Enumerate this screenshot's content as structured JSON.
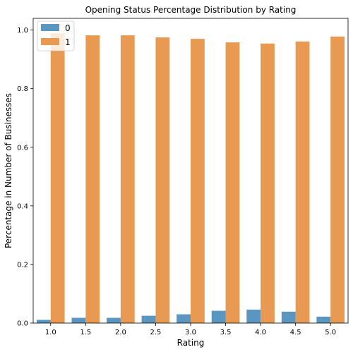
{
  "chart_data": {
    "type": "bar",
    "title": "Opening Status Percentage Distribution by Rating",
    "xlabel": "Rating",
    "ylabel": "Percentage in Number of Businesses",
    "categories": [
      "1.0",
      "1.5",
      "2.0",
      "2.5",
      "3.0",
      "3.5",
      "4.0",
      "4.5",
      "5.0"
    ],
    "ylim": [
      0,
      1.04
    ],
    "yticks": [
      "0.0",
      "0.2",
      "0.4",
      "0.6",
      "0.8",
      "1.0"
    ],
    "grid": false,
    "legend_position": "top-left",
    "series": [
      {
        "name": "0",
        "color": "#5a96c0",
        "values": [
          0.011,
          0.018,
          0.018,
          0.025,
          0.03,
          0.042,
          0.046,
          0.039,
          0.022
        ]
      },
      {
        "name": "1",
        "color": "#e99a52",
        "values": [
          0.989,
          0.982,
          0.982,
          0.975,
          0.97,
          0.958,
          0.954,
          0.961,
          0.978
        ]
      }
    ]
  }
}
